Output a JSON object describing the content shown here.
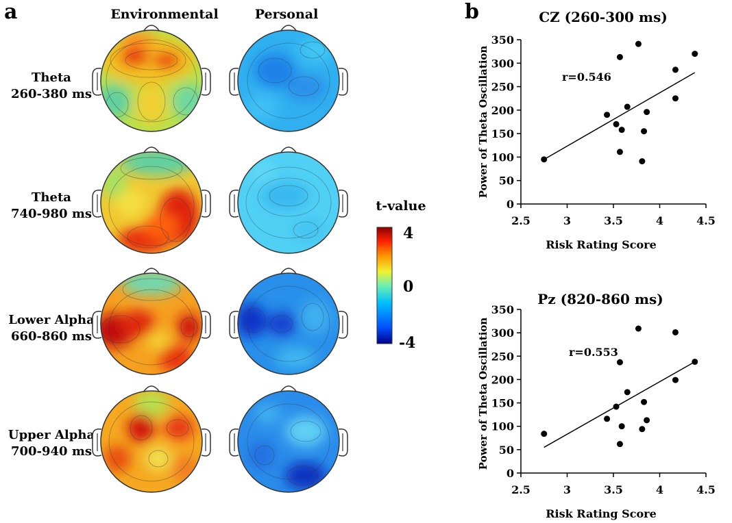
{
  "panel_a": {
    "letter": "a",
    "columns": [
      "Environmental",
      "Personal"
    ],
    "rows": [
      {
        "band": "Theta",
        "window": "260-380 ms"
      },
      {
        "band": "Theta",
        "window": "740-980 ms"
      },
      {
        "band": "Lower Alpha",
        "window": "660-860 ms"
      },
      {
        "band": "Upper Alpha",
        "window": "700-940 ms"
      }
    ],
    "colorbar": {
      "title": "t-value",
      "max_label": "4",
      "mid_label": "0",
      "min_label": "-4",
      "colors": [
        "#00008b",
        "#0050ff",
        "#00c0ff",
        "#6ff0b0",
        "#f0f030",
        "#ff9000",
        "#ff2000",
        "#8b0000"
      ]
    }
  },
  "panel_b": {
    "letter": "b"
  },
  "chart_data": [
    {
      "type": "scatter",
      "title": "CZ (260-300 ms)",
      "xlabel": "Risk  Rating Score",
      "ylabel": "Power of Theta Oscillation",
      "xlim": [
        2.5,
        4.5
      ],
      "ylim": [
        0,
        350
      ],
      "xticks": [
        "2.5",
        "3",
        "3.5",
        "4",
        "4.5"
      ],
      "yticks": [
        "0",
        "50",
        "100",
        "150",
        "200",
        "250",
        "300",
        "350"
      ],
      "annotation": "r=0.546",
      "points": [
        {
          "x": 2.75,
          "y": 95
        },
        {
          "x": 3.43,
          "y": 190
        },
        {
          "x": 3.53,
          "y": 170
        },
        {
          "x": 3.57,
          "y": 313
        },
        {
          "x": 3.59,
          "y": 158
        },
        {
          "x": 3.57,
          "y": 111
        },
        {
          "x": 3.65,
          "y": 207
        },
        {
          "x": 3.77,
          "y": 341
        },
        {
          "x": 3.81,
          "y": 91
        },
        {
          "x": 3.83,
          "y": 155
        },
        {
          "x": 3.86,
          "y": 196
        },
        {
          "x": 4.17,
          "y": 286
        },
        {
          "x": 4.17,
          "y": 225
        },
        {
          "x": 4.38,
          "y": 320
        }
      ],
      "fit_line": {
        "x1": 2.75,
        "y1": 95,
        "x2": 4.38,
        "y2": 280
      }
    },
    {
      "type": "scatter",
      "title": "Pz (820-860 ms)",
      "xlabel": "Risk  Rating Score",
      "ylabel": "Power of Theta Oscillation",
      "xlim": [
        2.5,
        4.5
      ],
      "ylim": [
        0,
        350
      ],
      "xticks": [
        "2.5",
        "3",
        "3.5",
        "4",
        "4.5"
      ],
      "yticks": [
        "0",
        "50",
        "100",
        "150",
        "200",
        "250",
        "300",
        "350"
      ],
      "annotation": "r=0.553",
      "points": [
        {
          "x": 2.75,
          "y": 84
        },
        {
          "x": 3.43,
          "y": 116
        },
        {
          "x": 3.53,
          "y": 142
        },
        {
          "x": 3.57,
          "y": 237
        },
        {
          "x": 3.59,
          "y": 100
        },
        {
          "x": 3.57,
          "y": 62
        },
        {
          "x": 3.65,
          "y": 173
        },
        {
          "x": 3.77,
          "y": 309
        },
        {
          "x": 3.81,
          "y": 94
        },
        {
          "x": 3.83,
          "y": 152
        },
        {
          "x": 3.86,
          "y": 113
        },
        {
          "x": 4.17,
          "y": 301
        },
        {
          "x": 4.17,
          "y": 199
        },
        {
          "x": 4.38,
          "y": 238
        }
      ],
      "fit_line": {
        "x1": 2.75,
        "y1": 55,
        "x2": 4.38,
        "y2": 238
      }
    }
  ]
}
